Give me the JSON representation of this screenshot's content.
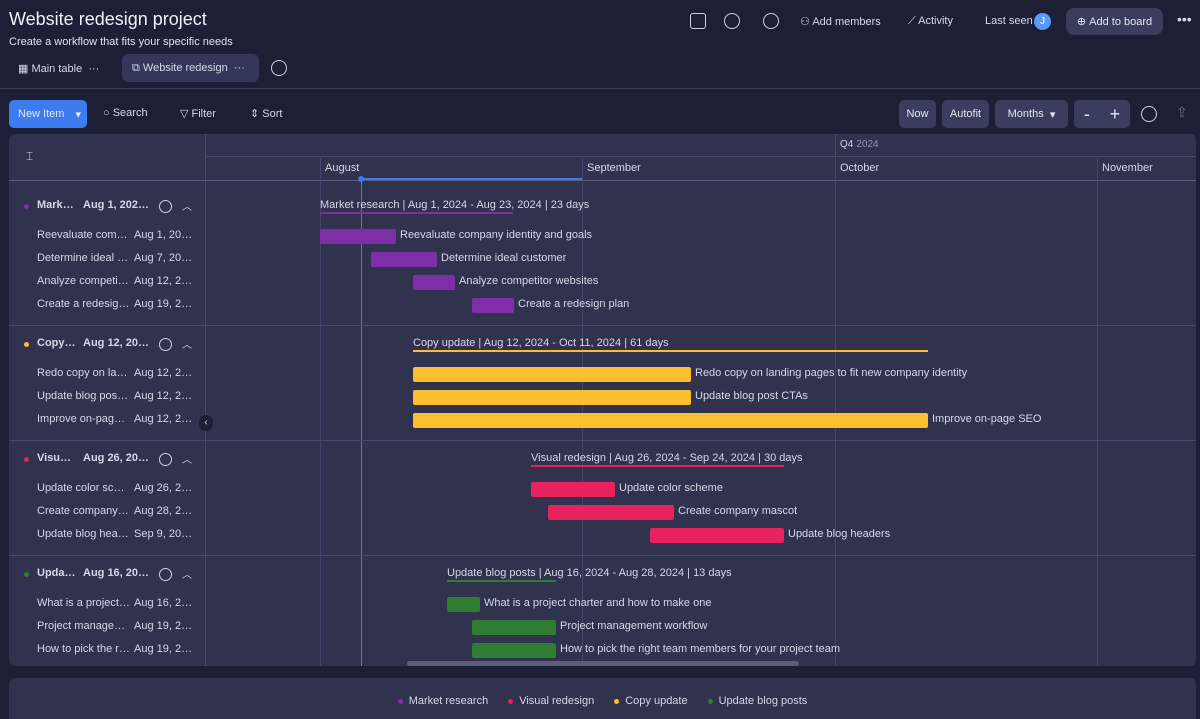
{
  "header": {
    "title": "Website redesign project",
    "subtitle": "Create a workflow that fits your specific needs",
    "add_members": "Add members",
    "activity": "Activity",
    "last_seen": "Last seen",
    "avatar": "J",
    "add_to_board": "Add to board"
  },
  "tabs": [
    "Main table",
    "Website redesign"
  ],
  "toolbar": {
    "new_item": "New Item",
    "search": "Search",
    "filter": "Filter",
    "sort": "Sort",
    "now": "Now",
    "autofit": "Autofit",
    "months": "Months",
    "minus": "-",
    "plus": "+"
  },
  "timeline": {
    "quarter": "Q4",
    "quarter_year": "2024",
    "months": [
      "August",
      "September",
      "October",
      "November"
    ]
  },
  "groups": [
    {
      "name": "Market research",
      "color": "#7e2fa8",
      "dates": "Aug 1, 2024 - Aug 23, 2024",
      "bar_label": "Market research | Aug 1, 2024 - Aug 23, 2024 | 23 days",
      "items": [
        {
          "name": "Reevaluate company identity and goals",
          "dates": "Aug 1, 2024 - Aug 8, 2024"
        },
        {
          "name": "Determine ideal customer",
          "dates": "Aug 7, 2024 - Aug 15, 2024"
        },
        {
          "name": "Analyze competitor websites",
          "dates": "Aug 12, 2024 - Aug 17, 2024"
        },
        {
          "name": "Create a redesign plan",
          "dates": "Aug 19, 2024 - Aug 23, 2024"
        }
      ]
    },
    {
      "name": "Copy update",
      "color": "#fbbf2e",
      "dates": "Aug 12, 2024 - Oct 11, 2024",
      "bar_label": "Copy update | Aug 12, 2024 - Oct 11, 2024 | 61 days",
      "items": [
        {
          "name": "Redo copy on landing pages to fit new company identity",
          "dates": "Aug 12, 2024 - Sep 14, 2024"
        },
        {
          "name": "Update blog post CTAs",
          "dates": "Aug 12, 2024 - Sep 14, 2024"
        },
        {
          "name": "Improve on-page SEO",
          "dates": "Aug 12, 2024 - Oct 11, 2024"
        }
      ]
    },
    {
      "name": "Visual redesign",
      "color": "#e8215f",
      "dates": "Aug 26, 2024 - Sep 24, 2024",
      "bar_label": "Visual redesign | Aug 26, 2024 - Sep 24, 2024 | 30 days",
      "items": [
        {
          "name": "Update color scheme",
          "dates": "Aug 26, 2024 - Sep 4, 2024"
        },
        {
          "name": "Create company mascot",
          "dates": "Aug 28, 2024 - Sep 12, 2024"
        },
        {
          "name": "Update blog headers",
          "dates": "Sep 9, 2024 - Sep 24, 2024"
        }
      ]
    },
    {
      "name": "Update blog posts",
      "color": "#2e7d32",
      "dates": "Aug 16, 2024 - Aug 28, 2024",
      "bar_label": "Update blog posts | Aug 16, 2024 - Aug 28, 2024 | 13 days",
      "items": [
        {
          "name": "What is a project charter and how to make one",
          "dates": "Aug 16, 2024 - Aug 19, 2024"
        },
        {
          "name": "Project management workflow",
          "dates": "Aug 19, 2024 - Aug 28, 2024"
        },
        {
          "name": "How to pick the right team members for your project team",
          "dates": "Aug 19, 2024 - Aug 28, 2024"
        }
      ]
    }
  ],
  "legend": [
    {
      "name": "Market research",
      "color": "#7e2fa8"
    },
    {
      "name": "Visual redesign",
      "color": "#e8215f"
    },
    {
      "name": "Copy update",
      "color": "#fbbf2e"
    },
    {
      "name": "Update blog posts",
      "color": "#2e7d32"
    }
  ]
}
